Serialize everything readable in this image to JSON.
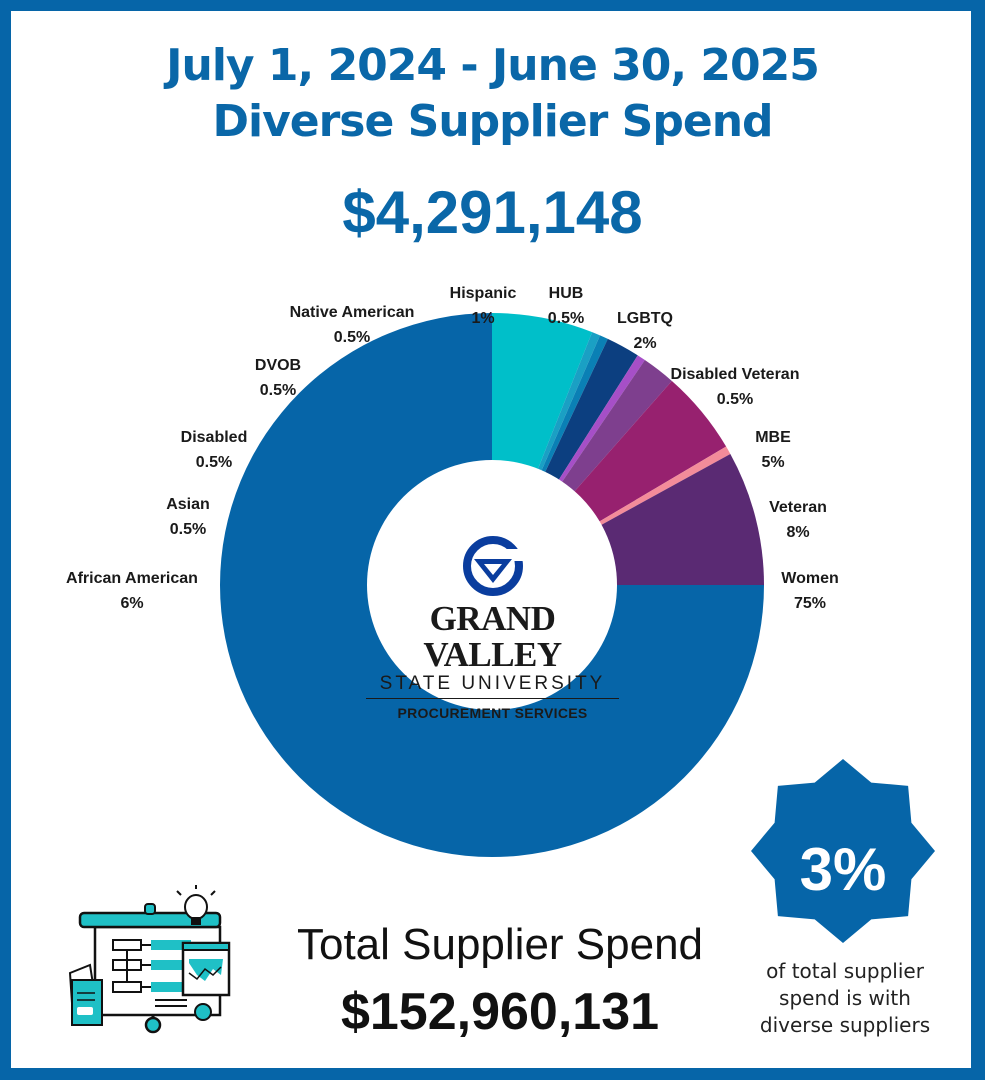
{
  "header": {
    "title_line1": "July 1, 2024 - June 30, 2025",
    "title_line2": "Diverse Supplier Spend",
    "diverse_spend_amount": "$4,291,148"
  },
  "logo": {
    "name_line1": "GRAND VALLEY",
    "name_line2": "STATE UNIVERSITY",
    "department": "PROCUREMENT SERVICES"
  },
  "labels": [
    {
      "name": "Hispanic",
      "pct": "1%"
    },
    {
      "name": "HUB",
      "pct": "0.5%"
    },
    {
      "name": "LGBTQ",
      "pct": "2%"
    },
    {
      "name": "Disabled Veteran",
      "pct": "0.5%"
    },
    {
      "name": "MBE",
      "pct": "5%"
    },
    {
      "name": "Veteran",
      "pct": "8%"
    },
    {
      "name": "Women",
      "pct": "75%"
    },
    {
      "name": "African American",
      "pct": "6%"
    },
    {
      "name": "Asian",
      "pct": "0.5%"
    },
    {
      "name": "Disabled",
      "pct": "0.5%"
    },
    {
      "name": "DVOB",
      "pct": "0.5%"
    },
    {
      "name": "Native American",
      "pct": "0.5%"
    }
  ],
  "footer": {
    "total_label": "Total Supplier Spend",
    "total_amount": "$152,960,131",
    "badge_value": "3%",
    "badge_caption_line1": "of total supplier",
    "badge_caption_line2": "spend is with",
    "badge_caption_line3": "diverse suppliers"
  },
  "colors": {
    "brand_blue": "#0665a8",
    "women": "#0665a8",
    "african_american": "#00bfc9",
    "asian": "#1aa0c4",
    "disabled": "#0a80b5",
    "dvob": "#11599a",
    "native_american": "#0c3f80",
    "hispanic": "#0c3f80",
    "hub": "#a64fc7",
    "lgbtq": "#7e3f8e",
    "mbe": "#97216f",
    "disabled_veteran": "#f38c9a",
    "veteran": "#5a2a73"
  },
  "chart_data": {
    "type": "pie",
    "style": "donut",
    "title": "July 1, 2024 - June 30, 2025 Diverse Supplier Spend",
    "subtitle": "$4,291,148",
    "categories": [
      "Women",
      "Veteran",
      "African American",
      "MBE",
      "LGBTQ",
      "Hispanic",
      "Asian",
      "Disabled",
      "DVOB",
      "Native American",
      "HUB",
      "Disabled Veteran"
    ],
    "values": [
      75,
      8,
      6,
      5,
      2,
      1,
      0.5,
      0.5,
      0.5,
      0.5,
      0.5,
      0.5
    ],
    "unit": "%",
    "legend": "labels placed around the donut",
    "center_content": "Grand Valley State University Procurement Services logo",
    "annotations": [
      "Total Supplier Spend $152,960,131",
      "3% of total supplier spend is with diverse suppliers"
    ]
  }
}
